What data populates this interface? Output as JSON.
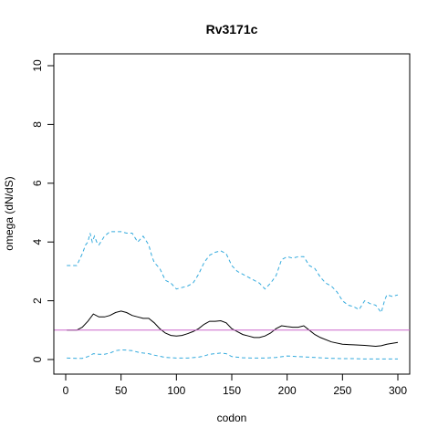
{
  "chart_data": {
    "type": "line",
    "title": "Rv3171c",
    "xlabel": "codon",
    "ylabel": "omega (dN/dS)",
    "xlim": [
      0,
      300
    ],
    "ylim": [
      0,
      10
    ],
    "x_ticks": [
      0,
      50,
      100,
      150,
      200,
      250,
      300
    ],
    "y_ticks": [
      0,
      2,
      4,
      6,
      8,
      10
    ],
    "grid": false,
    "reference_line": {
      "y": 1,
      "color": "#CC66CC"
    },
    "series": [
      {
        "style": "solid",
        "color": "#000000",
        "x": [
          1,
          10,
          15,
          20,
          25,
          30,
          35,
          40,
          45,
          50,
          55,
          60,
          65,
          70,
          75,
          80,
          85,
          90,
          95,
          100,
          105,
          110,
          115,
          120,
          125,
          130,
          135,
          140,
          145,
          150,
          155,
          160,
          165,
          170,
          175,
          180,
          185,
          190,
          195,
          200,
          205,
          210,
          215,
          220,
          225,
          230,
          240,
          250,
          260,
          270,
          280,
          285,
          290,
          295,
          300
        ],
        "values": [
          1.0,
          1.0,
          1.1,
          1.3,
          1.55,
          1.45,
          1.45,
          1.5,
          1.6,
          1.65,
          1.6,
          1.5,
          1.45,
          1.4,
          1.4,
          1.25,
          1.05,
          0.9,
          0.82,
          0.8,
          0.82,
          0.88,
          0.95,
          1.05,
          1.2,
          1.3,
          1.3,
          1.32,
          1.25,
          1.05,
          0.95,
          0.85,
          0.8,
          0.75,
          0.75,
          0.8,
          0.9,
          1.05,
          1.15,
          1.12,
          1.1,
          1.1,
          1.15,
          1.0,
          0.85,
          0.75,
          0.6,
          0.52,
          0.5,
          0.48,
          0.45,
          0.47,
          0.52,
          0.55,
          0.58
        ]
      },
      {
        "style": "dashed",
        "color": "#33AADD",
        "x": [
          1,
          10,
          15,
          18,
          20,
          22,
          24,
          26,
          28,
          30,
          35,
          40,
          45,
          50,
          55,
          60,
          65,
          70,
          75,
          78,
          80,
          85,
          90,
          95,
          100,
          105,
          110,
          115,
          120,
          125,
          130,
          135,
          140,
          145,
          150,
          155,
          160,
          165,
          170,
          175,
          180,
          185,
          190,
          195,
          200,
          205,
          210,
          215,
          220,
          225,
          230,
          235,
          240,
          245,
          250,
          255,
          260,
          265,
          270,
          275,
          280,
          285,
          288,
          290,
          295,
          300
        ],
        "values": [
          3.2,
          3.2,
          3.6,
          3.9,
          4.0,
          4.3,
          4.0,
          4.2,
          4.0,
          3.9,
          4.2,
          4.35,
          4.35,
          4.35,
          4.3,
          4.3,
          4.0,
          4.2,
          3.9,
          3.5,
          3.3,
          3.1,
          2.7,
          2.6,
          2.4,
          2.45,
          2.5,
          2.6,
          2.9,
          3.3,
          3.55,
          3.65,
          3.7,
          3.6,
          3.2,
          3.0,
          2.9,
          2.8,
          2.7,
          2.6,
          2.4,
          2.6,
          2.85,
          3.4,
          3.5,
          3.45,
          3.5,
          3.5,
          3.2,
          3.1,
          2.8,
          2.6,
          2.5,
          2.3,
          2.0,
          1.85,
          1.8,
          1.7,
          2.0,
          1.9,
          1.85,
          1.6,
          2.0,
          2.2,
          2.15,
          2.2
        ]
      },
      {
        "style": "dashed",
        "color": "#33AADD",
        "x": [
          1,
          10,
          15,
          20,
          25,
          30,
          35,
          40,
          45,
          50,
          55,
          60,
          65,
          70,
          75,
          80,
          90,
          100,
          110,
          120,
          125,
          130,
          135,
          140,
          145,
          150,
          160,
          170,
          180,
          190,
          200,
          210,
          220,
          230,
          240,
          250,
          260,
          270,
          280,
          290,
          300
        ],
        "values": [
          0.05,
          0.04,
          0.04,
          0.1,
          0.2,
          0.18,
          0.18,
          0.22,
          0.3,
          0.33,
          0.32,
          0.3,
          0.25,
          0.22,
          0.2,
          0.15,
          0.07,
          0.05,
          0.05,
          0.08,
          0.12,
          0.18,
          0.2,
          0.22,
          0.2,
          0.1,
          0.06,
          0.05,
          0.05,
          0.07,
          0.12,
          0.1,
          0.08,
          0.06,
          0.04,
          0.03,
          0.03,
          0.02,
          0.02,
          0.02,
          0.02
        ]
      }
    ]
  }
}
